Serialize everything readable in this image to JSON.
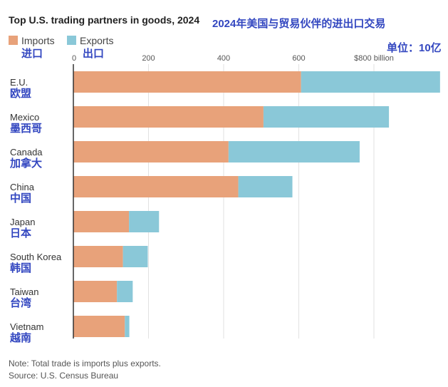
{
  "title": "Top U.S. trading partners in goods, 2024",
  "title_cn": "2024年美国与贸易伙伴的进出口交易",
  "unit_cn": "单位：10亿",
  "legend": [
    {
      "label": "Imports",
      "label_cn": "进口",
      "color": "#e8a27a"
    },
    {
      "label": "Exports",
      "label_cn": "出口",
      "color": "#8ac8d8"
    }
  ],
  "note": "Note: Total trade is imports plus exports.",
  "source": "Source: U.S. Census Bureau",
  "chart_data": {
    "type": "bar",
    "orientation": "horizontal",
    "stacked": true,
    "categories": [
      "E.U.",
      "Mexico",
      "Canada",
      "China",
      "Japan",
      "South Korea",
      "Taiwan",
      "Vietnam"
    ],
    "categories_cn": [
      "欧盟",
      "墨西哥",
      "加拿大",
      "中国",
      "日本",
      "韩国",
      "台湾",
      "越南"
    ],
    "series": [
      {
        "name": "Imports",
        "values": [
          606,
          506,
          413,
          439,
          148,
          132,
          116,
          137
        ]
      },
      {
        "name": "Exports",
        "values": [
          370,
          334,
          349,
          144,
          80,
          66,
          42,
          12
        ]
      }
    ],
    "xlim": [
      0,
      980
    ],
    "x_ticks": [
      "0",
      "200",
      "400",
      "600",
      "$800 billion"
    ],
    "x_tick_values": [
      0,
      200,
      400,
      600,
      800
    ],
    "grid": true
  }
}
